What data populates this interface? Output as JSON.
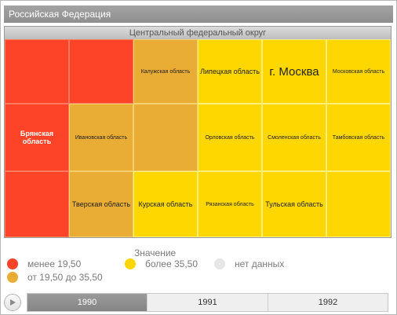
{
  "title": "Российская Федерация",
  "region": "Центральный федеральный округ",
  "colors": {
    "low": "#fd4428",
    "mid": "#e9ad35",
    "high": "#ffd700",
    "nodata": "#e6e6e6"
  },
  "cells": [
    {
      "label": "",
      "level": "low"
    },
    {
      "label": "",
      "level": "low"
    },
    {
      "label": "Калужская область",
      "level": "mid"
    },
    {
      "label": "Липецкая область",
      "level": "high"
    },
    {
      "label": "г. Москва",
      "level": "high"
    },
    {
      "label": "Московская область",
      "level": "high"
    },
    {
      "label": "Брянская область",
      "level": "low"
    },
    {
      "label": "Ивановская область",
      "level": "mid"
    },
    {
      "label": "",
      "level": "mid"
    },
    {
      "label": "Орловская область",
      "level": "high"
    },
    {
      "label": "Смоленская область",
      "level": "high"
    },
    {
      "label": "Тамбовская область",
      "level": "high"
    },
    {
      "label": "Тверская область",
      "level": "mid"
    },
    {
      "label": "Курская область",
      "level": "high"
    },
    {
      "label": "Рязанская область",
      "level": "high"
    },
    {
      "label": "Тульская область",
      "level": "high"
    },
    {
      "label": "",
      "level": "high"
    }
  ],
  "legend": {
    "title": "Значение",
    "items": [
      {
        "label": "менее 19,50",
        "color": "#fd4428"
      },
      {
        "label": "от 19,50 до 35,50",
        "color": "#e9ad35"
      },
      {
        "label": "более 35,50",
        "color": "#ffd700"
      },
      {
        "label": "нет данных",
        "color": "#e6e6e6"
      }
    ]
  },
  "timeline": {
    "years": [
      "1990",
      "1991",
      "1992"
    ],
    "active": "1990"
  }
}
